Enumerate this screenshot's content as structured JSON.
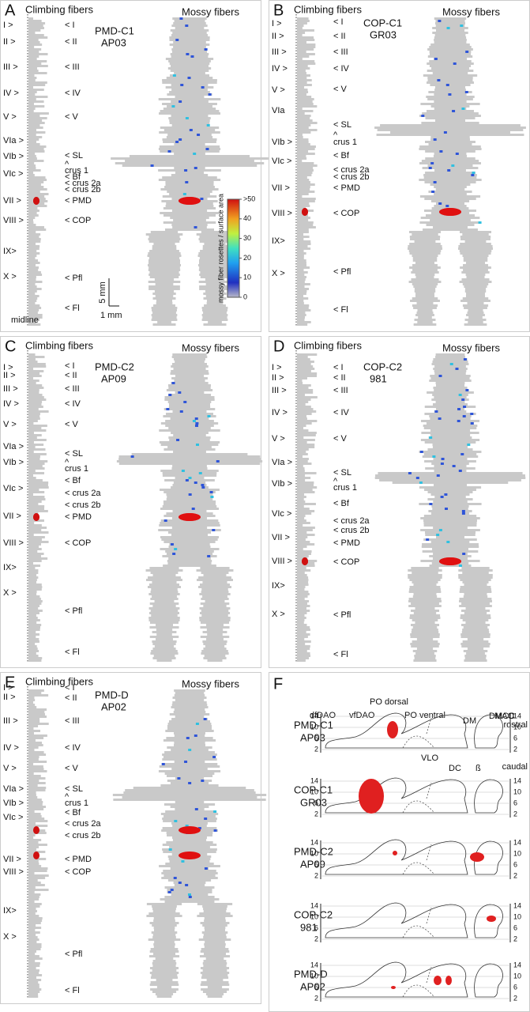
{
  "panels": [
    {
      "letter": "A",
      "left_title": "Climbing fibers",
      "right_title": "Mossy fibers",
      "case": "PMD-C1",
      "case_id": "AP03",
      "left_labels": [
        "I >",
        "II >",
        "III >",
        "IV >",
        "V >",
        "VIa >",
        "VIb >",
        "VIc >",
        "VII >",
        "VIII >",
        "IX>",
        "X >"
      ],
      "right_labels": [
        "< I",
        "< II",
        "< III",
        "< IV",
        "< V",
        "< SL",
        "^",
        "crus 1",
        "< Bf",
        "< crus 2a",
        "< crus 2b",
        "< PMD",
        "< COP",
        "< Pfl",
        "< Fl"
      ]
    },
    {
      "letter": "B",
      "left_title": "Climbing fibers",
      "right_title": "Mossy fibers",
      "case": "COP-C1",
      "case_id": "GR03",
      "left_labels": [
        "I >",
        "II >",
        "III >",
        "IV >",
        "V >",
        "VIa",
        "VIb >",
        "VIc >",
        "VII >",
        "VIII >",
        "IX>",
        "X >"
      ],
      "right_labels": [
        "< I",
        "< II",
        "< III",
        "< IV",
        "< V",
        "< SL",
        "^",
        "crus 1",
        "< Bf",
        "< crus 2a",
        "< crus 2b",
        "< PMD",
        "< COP",
        "< Pfl",
        "< Fl"
      ]
    },
    {
      "letter": "C",
      "left_title": "Climbing fibers",
      "right_title": "Mossy fibers",
      "case": "PMD-C2",
      "case_id": "AP09",
      "left_labels": [
        "I >",
        "II >",
        "III >",
        "IV >",
        "V >",
        "VIa >",
        "VIb >",
        "VIc >",
        "VII >",
        "VIII >",
        "IX>",
        "X >"
      ],
      "right_labels": [
        "< I",
        "< II",
        "< III",
        "< IV",
        "< V",
        "< SL",
        "^",
        "crus 1",
        "< Bf",
        "< crus 2a",
        "< crus 2b",
        "< PMD",
        "< COP",
        "< Pfl",
        "< Fl"
      ]
    },
    {
      "letter": "D",
      "left_title": "Climbing fibers",
      "right_title": "Mossy fibers",
      "case": "COP-C2",
      "case_id": "981",
      "left_labels": [
        "I >",
        "II >",
        "III >",
        "IV >",
        "V >",
        "VIa >",
        "VIb >",
        "VIc >",
        "VII >",
        "VIII >",
        "IX>",
        "X >"
      ],
      "right_labels": [
        "< I",
        "< II",
        "< III",
        "< IV",
        "< V",
        "< SL",
        "^",
        "crus 1",
        "< Bf",
        "< crus 2a",
        "< crus 2b",
        "< PMD",
        "< COP",
        "< Pfl",
        "< Fl"
      ]
    },
    {
      "letter": "E",
      "left_title": "Climbing fibers",
      "right_title": "Mossy fibers",
      "case": "PMD-D",
      "case_id": "AP02",
      "left_labels": [
        "I >",
        "II >",
        "III >",
        "IV >",
        "V >",
        "VIa >",
        "VIb >",
        "VIc >",
        "VII >",
        "VIII >",
        "IX>",
        "X >"
      ],
      "right_labels": [
        "< I",
        "< II",
        "< III",
        "< IV",
        "< V",
        "< SL",
        "^",
        "crus 1",
        "< Bf",
        "< crus 2a",
        "< crus 2b",
        "< PMD",
        "< COP",
        "< Pfl",
        "< Fl"
      ]
    }
  ],
  "panel_a_extras": {
    "midline": "midline",
    "scale_vertical": "5 mm",
    "scale_horizontal": "1 mm",
    "colorbar_label": "mossy fiber rosettes / surface area",
    "colorbar_lim": [
      0,
      50
    ],
    "colorbar_ticks": [
      {
        "value": 50,
        "label": ">50"
      },
      40,
      30,
      20,
      10,
      0
    ]
  },
  "panel_f": {
    "letter": "F",
    "labels": [
      "dfDAO",
      "vfDAO",
      "PO dorsal",
      "PO ventral",
      "DM",
      "MAO",
      "DMCC",
      "rostral",
      "caudal",
      "VLO",
      "DC",
      "ß"
    ],
    "rows": [
      {
        "case": "PMD-C1",
        "case_id": "AP03"
      },
      {
        "case": "COP-C1",
        "case_id": "GR03"
      },
      {
        "case": "PMD-C2",
        "case_id": "AP09"
      },
      {
        "case": "COP-C2",
        "case_id": "981"
      },
      {
        "case": "PMD-D",
        "case_id": "AP02"
      }
    ],
    "ylim": [
      0,
      16
    ],
    "yticks": [
      14,
      10,
      6,
      2
    ]
  }
}
